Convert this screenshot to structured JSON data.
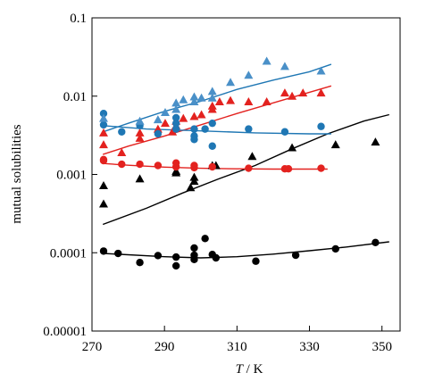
{
  "chart_data": {
    "type": "scatter",
    "title": "",
    "xlabel_var": "T",
    "xlabel_unit": " / K",
    "ylabel": "mutual solubilities",
    "xlim": [
      270,
      355
    ],
    "ylim": [
      1e-05,
      0.1
    ],
    "y_scale": "log",
    "x_ticks": [
      270,
      290,
      310,
      330,
      350
    ],
    "y_ticks": [
      1e-05,
      0.0001,
      0.001,
      0.01,
      0.1
    ],
    "y_tick_labels": [
      "0.00001",
      "0.0001",
      "0.001",
      "0.01",
      "0.1"
    ],
    "grid": false,
    "legend": "none",
    "series": [
      {
        "color": "#000000",
        "marker": "circle",
        "points": [
          [
            273.2,
            0.000105
          ],
          [
            277.2,
            9.8e-05
          ],
          [
            283.2,
            7.5e-05
          ],
          [
            288.2,
            9.2e-05
          ],
          [
            293.2,
            8.8e-05
          ],
          [
            293.2,
            6.8e-05
          ],
          [
            298.2,
            0.000115
          ],
          [
            298.2,
            9.3e-05
          ],
          [
            298.2,
            8.2e-05
          ],
          [
            301.2,
            0.000152
          ],
          [
            303.2,
            9.5e-05
          ],
          [
            304.2,
            8.6e-05
          ],
          [
            315.2,
            7.8e-05
          ],
          [
            326.2,
            9.3e-05
          ],
          [
            337.2,
            0.000112
          ],
          [
            348.2,
            0.000135
          ]
        ]
      },
      {
        "color": "#000000",
        "marker": "triangle",
        "points": [
          [
            273.2,
            0.00072
          ],
          [
            273.2,
            0.00042
          ],
          [
            283.2,
            0.00088
          ],
          [
            293.2,
            0.0011
          ],
          [
            293.2,
            0.00105
          ],
          [
            297.2,
            0.00068
          ],
          [
            298.2,
            0.00082
          ],
          [
            298.2,
            0.00092
          ],
          [
            303.2,
            0.0013
          ],
          [
            304.2,
            0.0013
          ],
          [
            314.2,
            0.0017
          ],
          [
            325.2,
            0.0022
          ],
          [
            337.2,
            0.0024
          ],
          [
            348.2,
            0.0026
          ]
        ]
      },
      {
        "color": "#e3221f",
        "marker": "circle",
        "points": [
          [
            273.2,
            0.0015
          ],
          [
            273.2,
            0.00155
          ],
          [
            278.2,
            0.00135
          ],
          [
            283.2,
            0.00135
          ],
          [
            288.2,
            0.0013
          ],
          [
            293.2,
            0.00125
          ],
          [
            293.2,
            0.0014
          ],
          [
            298.2,
            0.00122
          ],
          [
            298.2,
            0.0013
          ],
          [
            303.2,
            0.00125
          ],
          [
            313.2,
            0.0012
          ],
          [
            323.2,
            0.00118
          ],
          [
            324.2,
            0.00118
          ],
          [
            333.2,
            0.0012
          ]
        ]
      },
      {
        "color": "#e3221f",
        "marker": "triangle",
        "points": [
          [
            273.2,
            0.0024
          ],
          [
            273.2,
            0.0034
          ],
          [
            278.2,
            0.0019
          ],
          [
            283.2,
            0.0029
          ],
          [
            283.2,
            0.0034
          ],
          [
            288.2,
            0.0038
          ],
          [
            290.2,
            0.0045
          ],
          [
            292.2,
            0.0035
          ],
          [
            293.2,
            0.0042
          ],
          [
            293.2,
            0.0048
          ],
          [
            295.2,
            0.0052
          ],
          [
            298.2,
            0.0055
          ],
          [
            300.2,
            0.0058
          ],
          [
            303.2,
            0.0068
          ],
          [
            303.2,
            0.0075
          ],
          [
            305.2,
            0.0085
          ],
          [
            308.2,
            0.0088
          ],
          [
            313.2,
            0.0085
          ],
          [
            318.2,
            0.0085
          ],
          [
            323.2,
            0.011
          ],
          [
            325.2,
            0.01
          ],
          [
            328.2,
            0.011
          ],
          [
            333.2,
            0.011
          ]
        ]
      },
      {
        "color": "#1f77b4",
        "marker": "circle",
        "points": [
          [
            273.2,
            0.006
          ],
          [
            273.2,
            0.0043
          ],
          [
            278.2,
            0.0035
          ],
          [
            283.2,
            0.0042
          ],
          [
            288.2,
            0.0033
          ],
          [
            293.2,
            0.0038
          ],
          [
            293.2,
            0.0045
          ],
          [
            293.2,
            0.0053
          ],
          [
            298.2,
            0.0028
          ],
          [
            298.2,
            0.0031
          ],
          [
            298.2,
            0.0038
          ],
          [
            301.2,
            0.0038
          ],
          [
            303.2,
            0.0045
          ],
          [
            303.2,
            0.0023
          ],
          [
            313.2,
            0.0038
          ],
          [
            323.2,
            0.0035
          ],
          [
            333.2,
            0.0041
          ]
        ]
      },
      {
        "color": "#4a90c8",
        "marker": "triangle",
        "points": [
          [
            273.2,
            0.0052
          ],
          [
            283.2,
            0.0048
          ],
          [
            288.2,
            0.005
          ],
          [
            290.2,
            0.0062
          ],
          [
            293.2,
            0.0068
          ],
          [
            293.2,
            0.0082
          ],
          [
            295.2,
            0.009
          ],
          [
            298.2,
            0.0098
          ],
          [
            298.2,
            0.0085
          ],
          [
            300.2,
            0.0095
          ],
          [
            303.2,
            0.0115
          ],
          [
            303.2,
            0.0095
          ],
          [
            308.2,
            0.015
          ],
          [
            313.2,
            0.0185
          ],
          [
            318.2,
            0.028
          ],
          [
            323.2,
            0.024
          ],
          [
            333.2,
            0.021
          ]
        ]
      }
    ],
    "fit_curves": [
      {
        "color": "#000000",
        "points": [
          [
            273,
            9.8e-05
          ],
          [
            290,
            8.9e-05
          ],
          [
            300,
            8.6e-05
          ],
          [
            310,
            8.9e-05
          ],
          [
            320,
            9.6e-05
          ],
          [
            330,
            0.000106
          ],
          [
            340,
            0.000118
          ],
          [
            352,
            0.000138
          ]
        ]
      },
      {
        "color": "#000000",
        "points": [
          [
            273,
            0.00023
          ],
          [
            285,
            0.00037
          ],
          [
            295,
            0.00058
          ],
          [
            305,
            0.00088
          ],
          [
            315,
            0.0013
          ],
          [
            325,
            0.0021
          ],
          [
            335,
            0.0033
          ],
          [
            345,
            0.0048
          ],
          [
            352,
            0.0058
          ]
        ]
      },
      {
        "color": "#e3221f",
        "points": [
          [
            273,
            0.00138
          ],
          [
            280,
            0.00131
          ],
          [
            290,
            0.00124
          ],
          [
            300,
            0.0012
          ],
          [
            310,
            0.00118
          ],
          [
            320,
            0.00117
          ],
          [
            335,
            0.00117
          ]
        ]
      },
      {
        "color": "#e3221f",
        "points": [
          [
            273,
            0.0018
          ],
          [
            280,
            0.0023
          ],
          [
            290,
            0.0031
          ],
          [
            300,
            0.0043
          ],
          [
            310,
            0.006
          ],
          [
            320,
            0.0082
          ],
          [
            330,
            0.0112
          ],
          [
            336,
            0.0135
          ]
        ]
      },
      {
        "color": "#1f77b4",
        "points": [
          [
            273,
            0.0042
          ],
          [
            285,
            0.0038
          ],
          [
            300,
            0.0036
          ],
          [
            315,
            0.0034
          ],
          [
            330,
            0.0033
          ],
          [
            336,
            0.0033
          ]
        ]
      },
      {
        "color": "#1f77b4",
        "points": [
          [
            273,
            0.0035
          ],
          [
            280,
            0.0045
          ],
          [
            290,
            0.0064
          ],
          [
            300,
            0.0086
          ],
          [
            310,
            0.0122
          ],
          [
            320,
            0.016
          ],
          [
            330,
            0.0205
          ],
          [
            336,
            0.0255
          ]
        ]
      }
    ]
  }
}
